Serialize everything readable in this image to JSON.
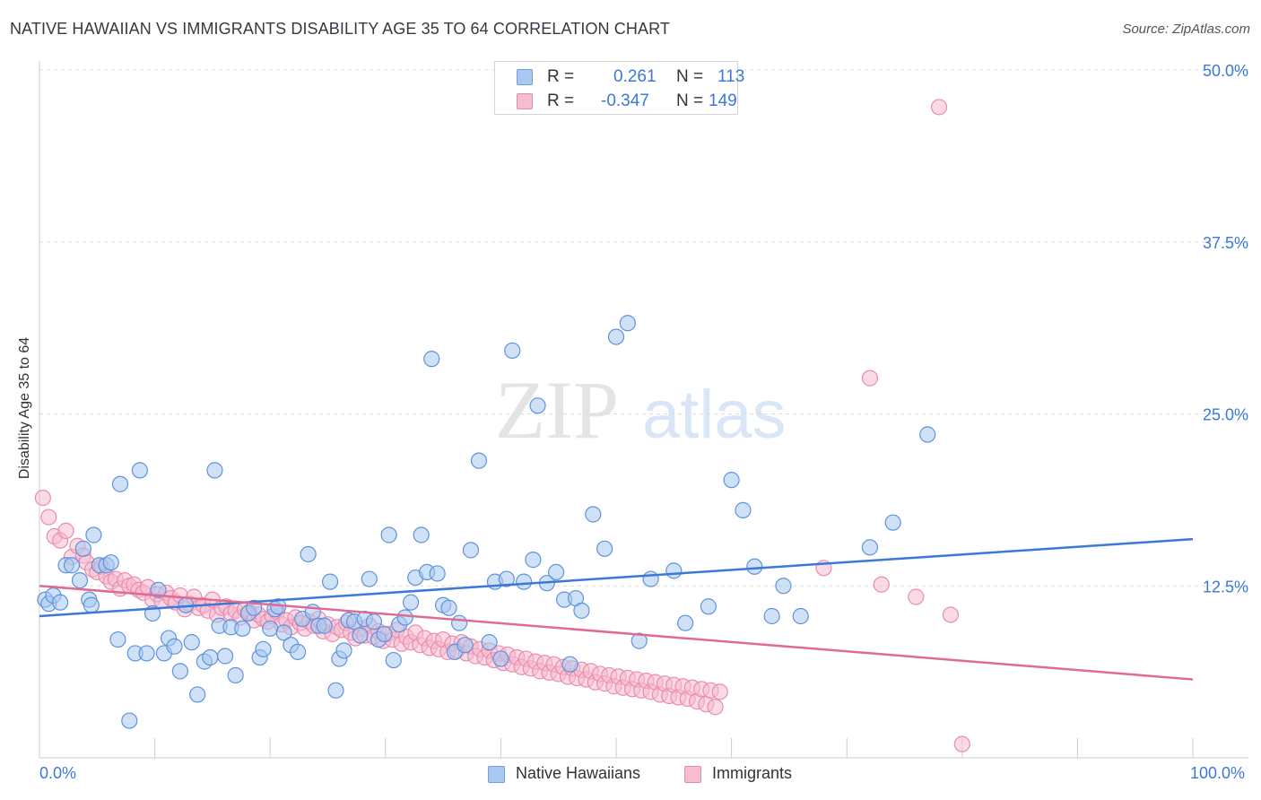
{
  "title": "NATIVE HAWAIIAN VS IMMIGRANTS DISABILITY AGE 35 TO 64 CORRELATION CHART",
  "source": "Source: ZipAtlas.com",
  "watermark": {
    "zip": "ZIP",
    "atlas": "atlas"
  },
  "legend_top": [
    {
      "r_label": "R =",
      "r_value": "0.261",
      "n_label": "N =",
      "n_value": "113"
    },
    {
      "r_label": "R =",
      "r_value": "-0.347",
      "n_label": "N =",
      "n_value": "149"
    }
  ],
  "legend_bottom": [
    "Native Hawaiians",
    "Immigrants"
  ],
  "chart_data": {
    "type": "scatter",
    "ylabel": "Disability Age 35 to 64",
    "x_tick_labels": [
      "0.0%",
      "100.0%"
    ],
    "y_tick_labels": [
      "12.5%",
      "25.0%",
      "37.5%",
      "50.0%"
    ],
    "y_ticks": [
      12.5,
      25.0,
      37.5,
      50.0
    ],
    "xlim": [
      0,
      100
    ],
    "ylim": [
      0,
      50
    ],
    "grid": true,
    "colors": {
      "blue": "#3b78d8",
      "pink": "#e06a95",
      "blue_fill": "#a8c8f0",
      "pink_fill": "#f6bcd0"
    },
    "series": [
      {
        "name": "Native Hawaiians",
        "color": "#3b78d8",
        "trend": {
          "x": [
            0,
            100
          ],
          "y": [
            10.3,
            15.9
          ]
        },
        "points": [
          [
            0.5,
            11.5
          ],
          [
            0.8,
            11.2
          ],
          [
            1.2,
            11.8
          ],
          [
            1.8,
            11.3
          ],
          [
            2.3,
            14.0
          ],
          [
            2.8,
            14.0
          ],
          [
            3.5,
            12.9
          ],
          [
            3.8,
            15.2
          ],
          [
            4.3,
            11.5
          ],
          [
            4.5,
            11.1
          ],
          [
            4.7,
            16.2
          ],
          [
            5.2,
            14.0
          ],
          [
            5.8,
            14.0
          ],
          [
            6.2,
            14.2
          ],
          [
            6.8,
            8.6
          ],
          [
            7.0,
            19.9
          ],
          [
            7.8,
            2.7
          ],
          [
            8.3,
            7.6
          ],
          [
            8.7,
            20.9
          ],
          [
            9.3,
            7.6
          ],
          [
            9.8,
            10.5
          ],
          [
            10.3,
            12.2
          ],
          [
            10.8,
            7.6
          ],
          [
            11.2,
            8.7
          ],
          [
            11.7,
            8.1
          ],
          [
            12.2,
            6.3
          ],
          [
            12.7,
            11.1
          ],
          [
            13.2,
            8.4
          ],
          [
            13.7,
            4.6
          ],
          [
            14.3,
            7.0
          ],
          [
            14.8,
            7.3
          ],
          [
            15.2,
            20.9
          ],
          [
            15.6,
            9.6
          ],
          [
            16.1,
            7.4
          ],
          [
            16.6,
            9.5
          ],
          [
            17.0,
            6.0
          ],
          [
            17.6,
            9.4
          ],
          [
            18.1,
            10.5
          ],
          [
            18.6,
            10.9
          ],
          [
            19.1,
            7.3
          ],
          [
            19.4,
            7.9
          ],
          [
            20.0,
            9.4
          ],
          [
            20.4,
            10.8
          ],
          [
            20.7,
            11.0
          ],
          [
            21.2,
            9.1
          ],
          [
            21.8,
            8.2
          ],
          [
            22.4,
            7.7
          ],
          [
            22.8,
            10.1
          ],
          [
            23.3,
            14.8
          ],
          [
            23.7,
            10.6
          ],
          [
            24.2,
            9.6
          ],
          [
            24.7,
            9.6
          ],
          [
            25.2,
            12.8
          ],
          [
            25.7,
            4.9
          ],
          [
            26.0,
            7.2
          ],
          [
            26.4,
            7.8
          ],
          [
            26.8,
            10.0
          ],
          [
            27.3,
            9.9
          ],
          [
            27.8,
            8.9
          ],
          [
            28.2,
            10.1
          ],
          [
            28.6,
            13.0
          ],
          [
            29.0,
            9.9
          ],
          [
            29.4,
            8.6
          ],
          [
            29.9,
            9.0
          ],
          [
            30.3,
            16.2
          ],
          [
            30.7,
            7.1
          ],
          [
            31.2,
            9.7
          ],
          [
            31.7,
            10.2
          ],
          [
            32.2,
            11.3
          ],
          [
            32.6,
            13.1
          ],
          [
            33.1,
            16.2
          ],
          [
            33.6,
            13.5
          ],
          [
            34.0,
            29.0
          ],
          [
            34.5,
            13.4
          ],
          [
            35.0,
            11.1
          ],
          [
            35.5,
            10.9
          ],
          [
            36.0,
            7.7
          ],
          [
            36.4,
            9.8
          ],
          [
            36.9,
            8.2
          ],
          [
            37.4,
            15.1
          ],
          [
            38.1,
            21.6
          ],
          [
            39.0,
            8.4
          ],
          [
            39.5,
            12.8
          ],
          [
            40.0,
            7.2
          ],
          [
            40.5,
            13.0
          ],
          [
            41.0,
            29.6
          ],
          [
            42.0,
            12.8
          ],
          [
            42.8,
            14.4
          ],
          [
            43.2,
            25.6
          ],
          [
            44.0,
            12.7
          ],
          [
            44.8,
            13.5
          ],
          [
            45.5,
            11.5
          ],
          [
            46.0,
            6.8
          ],
          [
            46.5,
            11.6
          ],
          [
            47.0,
            10.7
          ],
          [
            48.0,
            17.7
          ],
          [
            49.0,
            15.2
          ],
          [
            50.0,
            30.6
          ],
          [
            51.0,
            31.6
          ],
          [
            52.0,
            8.5
          ],
          [
            53.0,
            13.0
          ],
          [
            55.0,
            13.6
          ],
          [
            56.0,
            9.8
          ],
          [
            58.0,
            11.0
          ],
          [
            60.0,
            20.2
          ],
          [
            61.0,
            18.0
          ],
          [
            62.0,
            13.9
          ],
          [
            63.5,
            10.3
          ],
          [
            64.5,
            12.5
          ],
          [
            66.0,
            10.3
          ],
          [
            72.0,
            15.3
          ],
          [
            74.0,
            17.1
          ],
          [
            77.0,
            23.5
          ]
        ]
      },
      {
        "name": "Immigrants",
        "color": "#e06a95",
        "trend": {
          "x": [
            0,
            100
          ],
          "y": [
            12.5,
            5.7
          ]
        },
        "points": [
          [
            0.3,
            18.9
          ],
          [
            0.8,
            17.5
          ],
          [
            1.3,
            16.1
          ],
          [
            1.8,
            15.8
          ],
          [
            2.3,
            16.5
          ],
          [
            2.8,
            14.6
          ],
          [
            3.3,
            15.4
          ],
          [
            3.8,
            14.7
          ],
          [
            4.1,
            14.2
          ],
          [
            4.6,
            13.7
          ],
          [
            5.0,
            13.5
          ],
          [
            5.4,
            13.9
          ],
          [
            5.8,
            13.2
          ],
          [
            6.2,
            12.8
          ],
          [
            6.6,
            13.0
          ],
          [
            7.0,
            12.3
          ],
          [
            7.4,
            12.9
          ],
          [
            7.8,
            12.5
          ],
          [
            8.2,
            12.6
          ],
          [
            8.6,
            12.2
          ],
          [
            9.0,
            12.0
          ],
          [
            9.4,
            12.4
          ],
          [
            9.8,
            11.5
          ],
          [
            10.2,
            11.9
          ],
          [
            10.6,
            11.4
          ],
          [
            11.0,
            12.0
          ],
          [
            11.4,
            11.6
          ],
          [
            11.8,
            11.3
          ],
          [
            12.2,
            11.8
          ],
          [
            12.6,
            10.8
          ],
          [
            13.0,
            11.2
          ],
          [
            13.4,
            11.7
          ],
          [
            13.8,
            10.9
          ],
          [
            14.2,
            11.1
          ],
          [
            14.6,
            10.7
          ],
          [
            15.0,
            11.5
          ],
          [
            15.4,
            10.4
          ],
          [
            15.8,
            10.9
          ],
          [
            16.2,
            11.0
          ],
          [
            16.6,
            10.5
          ],
          [
            17.0,
            10.7
          ],
          [
            17.4,
            10.2
          ],
          [
            17.8,
            10.8
          ],
          [
            18.2,
            10.6
          ],
          [
            18.6,
            10.0
          ],
          [
            19.0,
            10.4
          ],
          [
            19.4,
            10.1
          ],
          [
            19.8,
            9.9
          ],
          [
            20.2,
            10.3
          ],
          [
            20.6,
            10.6
          ],
          [
            21.0,
            9.7
          ],
          [
            21.4,
            10.0
          ],
          [
            21.8,
            9.5
          ],
          [
            22.2,
            10.2
          ],
          [
            22.6,
            9.8
          ],
          [
            23.0,
            9.4
          ],
          [
            23.4,
            9.9
          ],
          [
            23.8,
            9.6
          ],
          [
            24.2,
            10.1
          ],
          [
            24.6,
            9.2
          ],
          [
            25.0,
            9.7
          ],
          [
            25.4,
            9.0
          ],
          [
            25.8,
            9.5
          ],
          [
            26.2,
            9.3
          ],
          [
            26.6,
            9.8
          ],
          [
            27.0,
            9.1
          ],
          [
            27.4,
            8.7
          ],
          [
            27.8,
            9.4
          ],
          [
            28.2,
            8.9
          ],
          [
            28.6,
            9.6
          ],
          [
            29.0,
            8.8
          ],
          [
            29.4,
            9.2
          ],
          [
            29.8,
            8.5
          ],
          [
            30.2,
            9.0
          ],
          [
            30.6,
            8.6
          ],
          [
            31.0,
            9.3
          ],
          [
            31.4,
            8.3
          ],
          [
            31.8,
            8.8
          ],
          [
            32.2,
            8.4
          ],
          [
            32.6,
            9.1
          ],
          [
            33.0,
            8.2
          ],
          [
            33.4,
            8.7
          ],
          [
            33.8,
            8.0
          ],
          [
            34.2,
            8.5
          ],
          [
            34.6,
            7.9
          ],
          [
            35.0,
            8.6
          ],
          [
            35.4,
            7.7
          ],
          [
            35.8,
            8.3
          ],
          [
            36.2,
            7.8
          ],
          [
            36.6,
            8.4
          ],
          [
            37.0,
            7.6
          ],
          [
            37.4,
            8.1
          ],
          [
            37.8,
            7.4
          ],
          [
            38.2,
            7.9
          ],
          [
            38.6,
            7.3
          ],
          [
            39.0,
            7.8
          ],
          [
            39.4,
            7.1
          ],
          [
            39.8,
            7.6
          ],
          [
            40.2,
            6.9
          ],
          [
            40.6,
            7.5
          ],
          [
            41.0,
            6.8
          ],
          [
            41.4,
            7.3
          ],
          [
            41.8,
            6.6
          ],
          [
            42.2,
            7.2
          ],
          [
            42.6,
            6.5
          ],
          [
            43.0,
            7.0
          ],
          [
            43.4,
            6.3
          ],
          [
            43.8,
            6.9
          ],
          [
            44.2,
            6.2
          ],
          [
            44.6,
            6.8
          ],
          [
            45.0,
            6.1
          ],
          [
            45.4,
            6.6
          ],
          [
            45.8,
            5.9
          ],
          [
            46.2,
            6.5
          ],
          [
            46.6,
            5.8
          ],
          [
            47.0,
            6.4
          ],
          [
            47.4,
            5.7
          ],
          [
            47.8,
            6.3
          ],
          [
            48.2,
            5.5
          ],
          [
            48.6,
            6.1
          ],
          [
            49.0,
            5.4
          ],
          [
            49.4,
            6.0
          ],
          [
            49.8,
            5.2
          ],
          [
            50.2,
            5.9
          ],
          [
            50.6,
            5.1
          ],
          [
            51.0,
            5.8
          ],
          [
            51.4,
            5.0
          ],
          [
            51.8,
            5.7
          ],
          [
            52.2,
            4.9
          ],
          [
            52.6,
            5.6
          ],
          [
            53.0,
            4.8
          ],
          [
            53.4,
            5.5
          ],
          [
            53.8,
            4.6
          ],
          [
            54.2,
            5.4
          ],
          [
            54.6,
            4.5
          ],
          [
            55.0,
            5.3
          ],
          [
            55.4,
            4.4
          ],
          [
            55.8,
            5.2
          ],
          [
            56.2,
            4.3
          ],
          [
            56.6,
            5.1
          ],
          [
            57.0,
            4.1
          ],
          [
            57.4,
            5.0
          ],
          [
            57.8,
            3.9
          ],
          [
            58.2,
            4.9
          ],
          [
            58.6,
            3.7
          ],
          [
            59.0,
            4.8
          ],
          [
            68.0,
            13.8
          ],
          [
            72.0,
            27.6
          ],
          [
            78.0,
            47.3
          ],
          [
            80.0,
            1.0
          ],
          [
            73.0,
            12.6
          ],
          [
            76.0,
            11.7
          ],
          [
            79.0,
            10.4
          ]
        ]
      }
    ]
  }
}
